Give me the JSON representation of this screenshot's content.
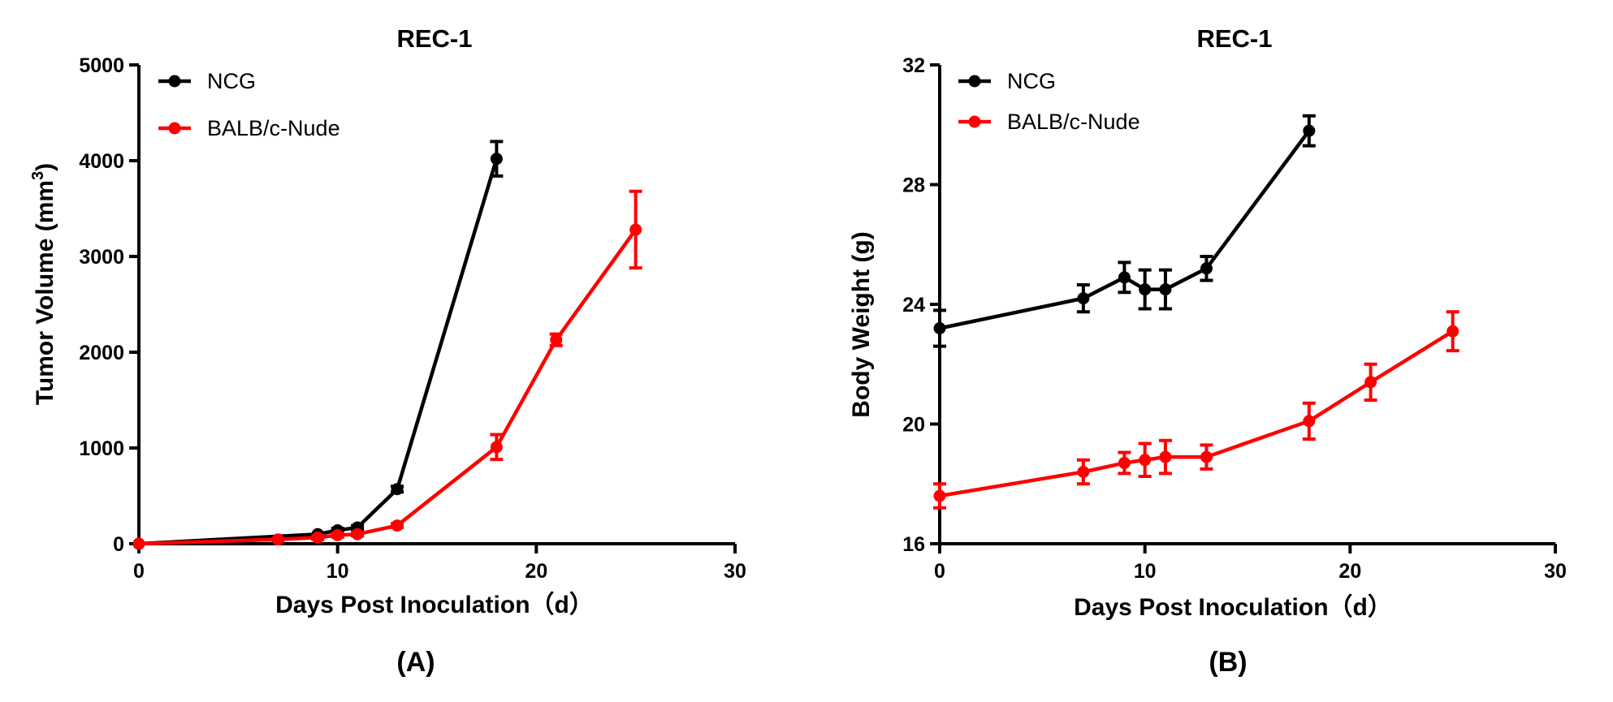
{
  "chart_data": [
    {
      "type": "line",
      "panel": "(A)",
      "title": "REC-1",
      "xlabel": "Days Post Inoculation（d）",
      "ylabel": "Tumor Volume (mm",
      "ylabel_superscript": "3",
      "ylabel_close": ")",
      "xlim": [
        0,
        30
      ],
      "ylim": [
        0,
        5000
      ],
      "xticks": [
        0,
        10,
        20,
        30
      ],
      "yticks": [
        0,
        1000,
        2000,
        3000,
        4000,
        5000
      ],
      "legend_position": "top-left",
      "series": [
        {
          "name": "NCG",
          "color": "#000000",
          "x": [
            0,
            9,
            10,
            11,
            13,
            18
          ],
          "y": [
            0,
            100,
            140,
            170,
            570,
            4020
          ],
          "err": [
            0,
            0,
            20,
            20,
            30,
            180
          ]
        },
        {
          "name": "BALB/c-Nude",
          "color": "#ff0000",
          "x": [
            0,
            7,
            9,
            10,
            11,
            13,
            18,
            21,
            25
          ],
          "y": [
            0,
            45,
            65,
            90,
            100,
            190,
            1010,
            2130,
            3280
          ],
          "err": [
            0,
            10,
            20,
            20,
            20,
            20,
            130,
            60,
            400
          ]
        }
      ]
    },
    {
      "type": "line",
      "panel": "(B)",
      "title": "REC-1",
      "xlabel": "Days Post Inoculation（d）",
      "ylabel": "Body Weight (g)",
      "xlim": [
        0,
        30
      ],
      "ylim": [
        16,
        32
      ],
      "xticks": [
        0,
        10,
        20,
        30
      ],
      "yticks": [
        16,
        20,
        24,
        28,
        32
      ],
      "legend_position": "top-left",
      "series": [
        {
          "name": "NCG",
          "color": "#000000",
          "x": [
            0,
            7,
            9,
            10,
            11,
            13,
            18
          ],
          "y": [
            23.2,
            24.2,
            24.9,
            24.5,
            24.5,
            25.2,
            29.8
          ],
          "err": [
            0.6,
            0.45,
            0.5,
            0.65,
            0.65,
            0.4,
            0.5
          ]
        },
        {
          "name": "BALB/c-Nude",
          "color": "#ff0000",
          "x": [
            0,
            7,
            9,
            10,
            11,
            13,
            18,
            21,
            25
          ],
          "y": [
            17.6,
            18.4,
            18.7,
            18.8,
            18.9,
            18.9,
            20.1,
            21.4,
            23.1
          ],
          "err": [
            0.4,
            0.4,
            0.35,
            0.55,
            0.55,
            0.4,
            0.6,
            0.6,
            0.65
          ]
        }
      ]
    }
  ]
}
